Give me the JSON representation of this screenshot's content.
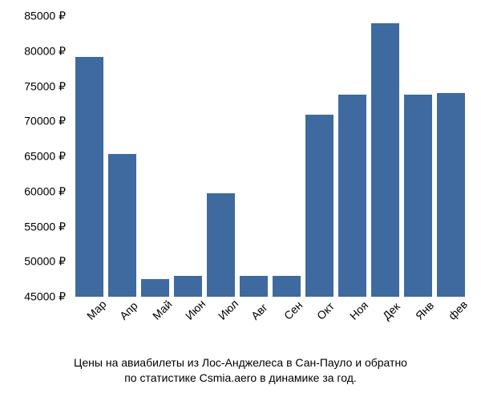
{
  "chart": {
    "type": "bar",
    "bar_color": "#3e6a9f",
    "background_color": "#ffffff",
    "text_color": "#000000",
    "label_fontsize": 14,
    "caption_fontsize": 14,
    "ylim": [
      45000,
      85000
    ],
    "ytick_step": 5000,
    "currency": "₽",
    "y_ticks": [
      {
        "v": 45000,
        "label": "45000 ₽"
      },
      {
        "v": 50000,
        "label": "50000 ₽"
      },
      {
        "v": 55000,
        "label": "55000 ₽"
      },
      {
        "v": 60000,
        "label": "60000 ₽"
      },
      {
        "v": 65000,
        "label": "65000 ₽"
      },
      {
        "v": 70000,
        "label": "70000 ₽"
      },
      {
        "v": 75000,
        "label": "75000 ₽"
      },
      {
        "v": 80000,
        "label": "80000 ₽"
      },
      {
        "v": 85000,
        "label": "85000 ₽"
      }
    ],
    "categories": [
      "Мар",
      "Апр",
      "Май",
      "Июн",
      "Июл",
      "Авг",
      "Сен",
      "Окт",
      "Ноя",
      "Дек",
      "Янв",
      "фев"
    ],
    "values": [
      79200,
      65300,
      47500,
      48000,
      59700,
      48000,
      48000,
      71000,
      73800,
      84000,
      73800,
      74000
    ],
    "caption_line1": "Цены на авиабилеты из Лос-Анджелеса в Сан-Пауло и обратно",
    "caption_line2": "по статистике Csmia.aero в динамике за год."
  }
}
